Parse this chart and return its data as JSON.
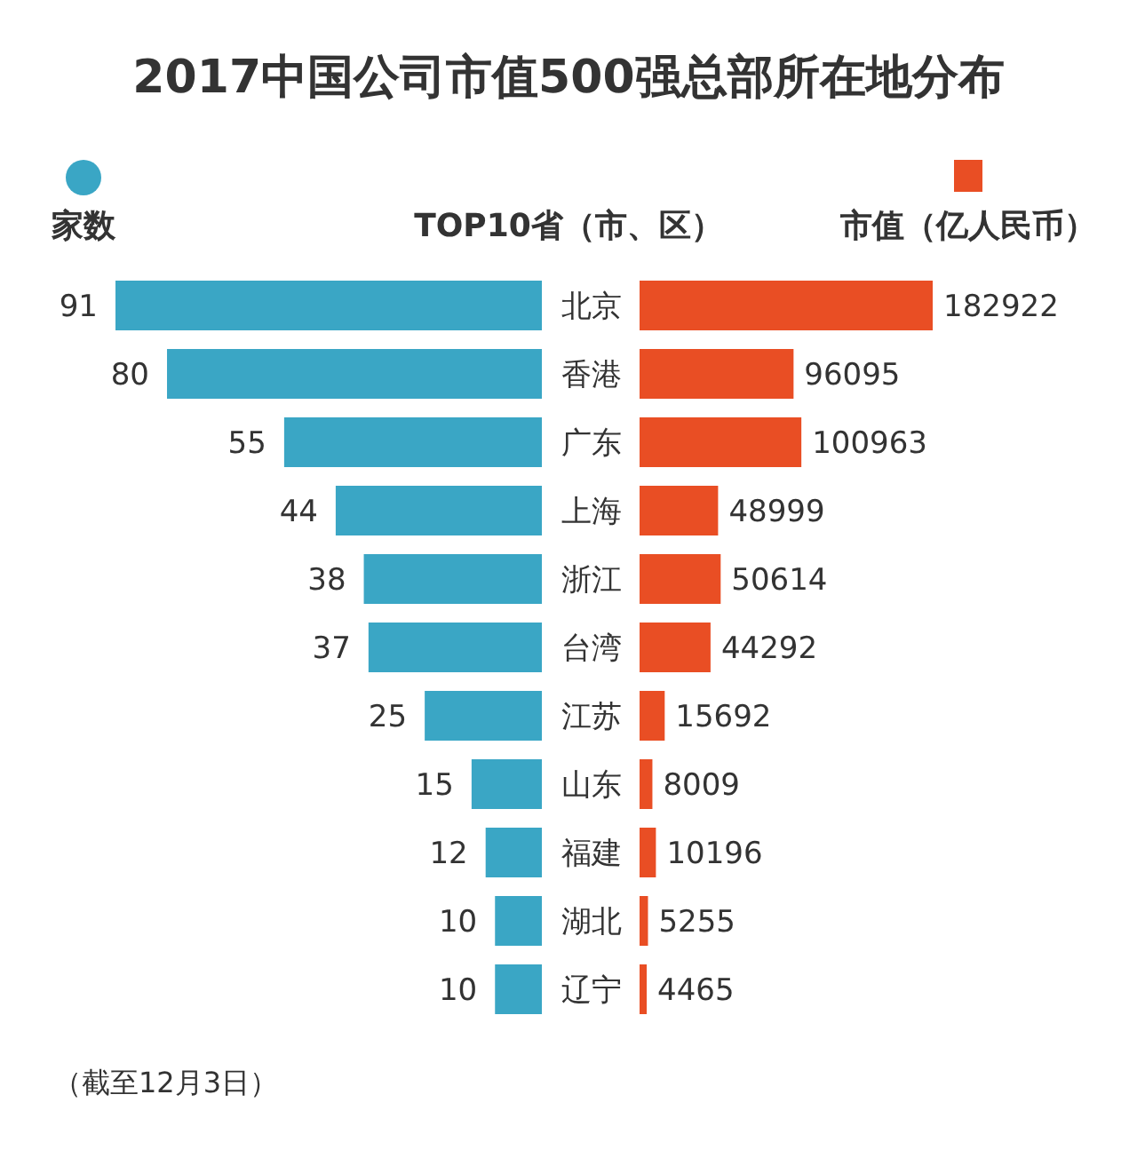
{
  "chart_data": [
    {
      "type": "bar",
      "orientation": "horizontal",
      "title": "2017中国公司市值500强总部所在地分布",
      "categories": [
        "北京",
        "香港",
        "广东",
        "上海",
        "浙江",
        "台湾",
        "江苏",
        "山东",
        "福建",
        "湖北",
        "辽宁"
      ],
      "legend": "top left",
      "data_labels": true,
      "series": [
        {
          "name": "家数",
          "color": "#3aa6c5",
          "values": [
            91,
            80,
            55,
            44,
            38,
            37,
            25,
            15,
            12,
            10,
            10
          ]
        }
      ]
    },
    {
      "type": "bar",
      "orientation": "horizontal",
      "ylabel": "TOP10省（市、区）",
      "categories": [
        null,
        null,
        null,
        null,
        null,
        null,
        null,
        null,
        null,
        null,
        null
      ],
      "legend": "top right",
      "data_labels": true,
      "series": [
        {
          "name": "市值（亿人民币）",
          "color": "#e94e24",
          "values": [
            182922,
            96095,
            100963,
            48999,
            50614,
            44292,
            15692,
            8009,
            10196,
            5255,
            4465
          ]
        }
      ],
      "annotations": [
        "（截至12月3日）"
      ]
    }
  ]
}
